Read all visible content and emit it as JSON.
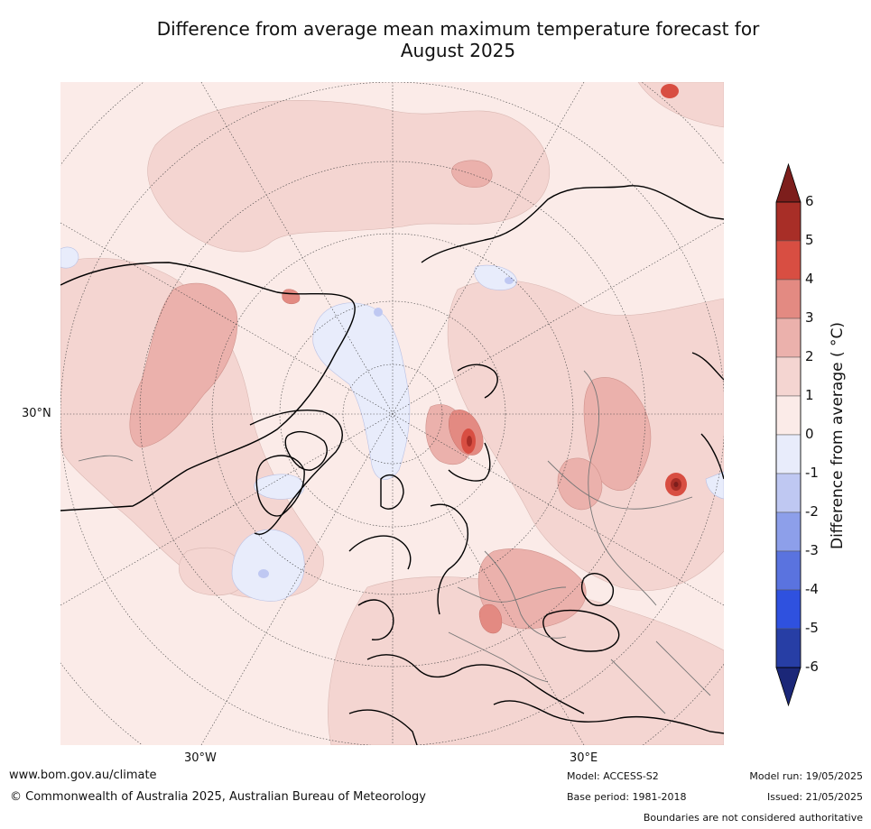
{
  "title_line1": "Difference from average mean maximum temperature forecast for",
  "title_line2": "August 2025",
  "map": {
    "projection": "north-polar-stereographic",
    "lat_label": "30°N",
    "lon_labels": [
      "30°W",
      "30°E"
    ],
    "fill_colors": {
      "0_to_1": "#fbebe8",
      "1_to_2": "#f4d5d1",
      "2_to_3": "#ebb1ac",
      "3_to_4": "#e38a82",
      "4_to_5": "#d84e42",
      "5_to_6": "#a82e27",
      "over_6": "#7d1e1c",
      "0_to_-1": "#e8ecfb",
      "-1_to_-2": "#bfc8f2",
      "-2_to_-3": "#8d9fea",
      "-3_to_-4": "#5a73df",
      "-4_to_-5": "#2f51df",
      "-5_to_-6": "#273ea5",
      "under_-6": "#1b2778"
    }
  },
  "colorbar": {
    "ticks": [
      "6",
      "5",
      "4",
      "3",
      "2",
      "1",
      "0",
      "-1",
      "-2",
      "-3",
      "-4",
      "-5",
      "-6"
    ],
    "label": "Difference from average ( °C)",
    "colors": [
      "#a82e27",
      "#d84e42",
      "#e38a82",
      "#ebb1ac",
      "#f4d5d1",
      "#fbebe8",
      "#e8ecfb",
      "#bfc8f2",
      "#8d9fea",
      "#5a73df",
      "#2f51df",
      "#273ea5"
    ],
    "over_color": "#7d1e1c",
    "under_color": "#1b2778"
  },
  "footer": {
    "website": "www.bom.gov.au/climate",
    "copyright": "© Commonwealth of Australia 2025, Australian Bureau of Meteorology",
    "model": "Model: ACCESS-S2",
    "base_period": "Base period: 1981-2018",
    "model_run": "Model run: 19/05/2025",
    "issued": "Issued: 21/05/2025",
    "disclaimer": "Boundaries are not considered authoritative"
  }
}
